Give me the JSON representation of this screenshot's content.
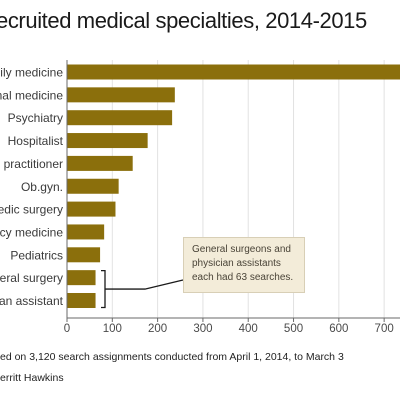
{
  "title": "ecruited medical specialties, 2014-2015",
  "footnote_lines": [
    "ed on 3,120 search assignments conducted from April 1, 2014, to March 3",
    "erritt Hawkins"
  ],
  "callout": {
    "lines": [
      "General surgeons and",
      "physician assistants",
      "each had 63 searches."
    ]
  },
  "colors": {
    "bar": "#8b6f0c",
    "callout_bg": "#f3ecd9",
    "axis": "#6a6a6a",
    "grid": "#e2e2e2"
  },
  "chart_data": {
    "type": "bar",
    "orientation": "horizontal",
    "title": "ecruited medical specialties, 2014-2015",
    "categories": [
      "ily medicine",
      "nal medicine",
      "Psychiatry",
      "Hospitalist",
      "practitioner",
      "Ob.gyn.",
      "edic surgery",
      "cy medicine",
      "Pediatrics",
      "eral surgery",
      "an assistant"
    ],
    "values": [
      735,
      238,
      232,
      178,
      145,
      114,
      107,
      82,
      73,
      63,
      63
    ],
    "xlim": [
      0,
      735
    ],
    "xticks": [
      0,
      100,
      200,
      300,
      400,
      500,
      600,
      700
    ],
    "grid": true,
    "annotation": "General surgeons and physician assistants each had 63 searches."
  }
}
